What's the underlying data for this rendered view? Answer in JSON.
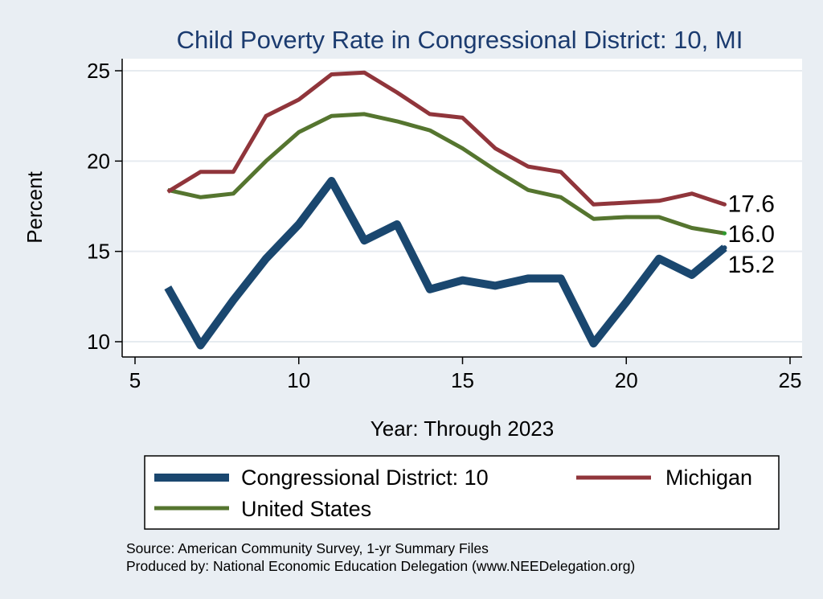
{
  "chart_data": {
    "type": "line",
    "title": "Child Poverty Rate in Congressional District:  10, MI",
    "xlabel": "Year: Through 2023",
    "ylabel": "Percent",
    "xlim": [
      5,
      25
    ],
    "ylim": [
      10,
      25
    ],
    "xticks": [
      "5",
      "10",
      "15",
      "20",
      "25"
    ],
    "yticks": [
      "10",
      "15",
      "20",
      "25"
    ],
    "x": [
      6,
      7,
      8,
      9,
      10,
      11,
      12,
      13,
      14,
      15,
      16,
      17,
      18,
      19,
      20,
      21,
      22,
      23
    ],
    "series": [
      {
        "name": "Congressional District:  10",
        "color": "#1a476f",
        "values": [
          13.0,
          9.8,
          12.3,
          14.6,
          16.5,
          18.9,
          15.6,
          16.5,
          12.9,
          13.4,
          13.1,
          13.5,
          13.5,
          9.9,
          12.2,
          14.6,
          13.7,
          15.2
        ],
        "end_label": "15.2"
      },
      {
        "name": "Michigan",
        "color": "#90353b",
        "values": [
          18.3,
          19.4,
          19.4,
          22.5,
          23.4,
          24.8,
          24.9,
          23.8,
          22.6,
          22.4,
          20.7,
          19.7,
          19.4,
          17.6,
          17.7,
          17.8,
          18.2,
          17.6
        ],
        "end_label": "17.6"
      },
      {
        "name": "United States",
        "color": "#55752f",
        "values": [
          18.4,
          18.0,
          18.2,
          20.0,
          21.6,
          22.5,
          22.6,
          22.2,
          21.7,
          20.7,
          19.5,
          18.4,
          18.0,
          16.8,
          16.9,
          16.9,
          16.3,
          16.0
        ],
        "end_label": "16.0"
      }
    ],
    "grid": "horizontal",
    "legend": "bottom"
  },
  "legend": {
    "items": [
      "Congressional District:  10",
      "Michigan",
      "United States"
    ]
  },
  "notes": {
    "source": "Source: American Community Survey, 1-yr Summary Files",
    "produced": "Produced by: National Economic Education Delegation (www.NEEDelegation.org)"
  }
}
